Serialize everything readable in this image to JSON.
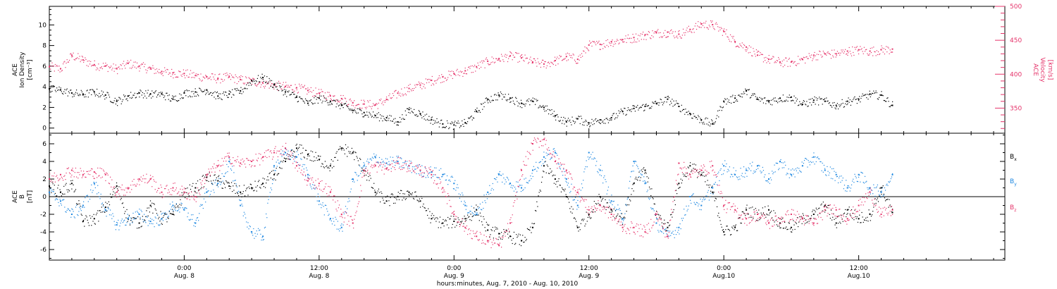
{
  "colors": {
    "black": "#000000",
    "pink": "#e5336a",
    "blue": "#1b86e0"
  },
  "xaxis": {
    "ticks": [
      {
        "time": "0:00",
        "date": "Aug. 8",
        "h": 24
      },
      {
        "time": "12:00",
        "date": "Aug. 8",
        "h": 36
      },
      {
        "time": "0:00",
        "date": "Aug. 9",
        "h": 48
      },
      {
        "time": "12:00",
        "date": "Aug. 9",
        "h": 60
      },
      {
        "time": "0:00",
        "date": "Aug.10",
        "h": 72
      },
      {
        "time": "12:00",
        "date": "Aug.10",
        "h": 84
      }
    ],
    "label": "hours:minutes, Aug.  7, 2010 - Aug. 10, 2010",
    "range_hours": [
      12,
      97
    ],
    "minor_tick_hours": 2
  },
  "chart_data": [
    {
      "type": "scatter",
      "panel": "top",
      "ylabel_left": [
        "ACE",
        "Ion Density",
        "[cm⁻³]"
      ],
      "ylabel_right": [
        "ACE",
        "Velocity",
        "[km/s]"
      ],
      "ylim_left": [
        -0.5,
        11.8
      ],
      "yticks_left": [
        0,
        2,
        4,
        6,
        8,
        10
      ],
      "ylim_right": [
        313,
        500
      ],
      "yticks_right": [
        350,
        400,
        450,
        500
      ],
      "series": [
        {
          "axis": "left",
          "color": "black",
          "x_hours": [
            12,
            13,
            14,
            15,
            16,
            17,
            18,
            19,
            20,
            21,
            22,
            23,
            24,
            25,
            26,
            27,
            28,
            29,
            30,
            31,
            32,
            33,
            34,
            35,
            36,
            37,
            38,
            39,
            40,
            41,
            42,
            43,
            44,
            45,
            46,
            47,
            48,
            49,
            50,
            51,
            52,
            53,
            54,
            55,
            56,
            57,
            58,
            59,
            60,
            61,
            62,
            63,
            64,
            65,
            66,
            67,
            68,
            69,
            70,
            71,
            72,
            73,
            74,
            75,
            76,
            77,
            78,
            79,
            80,
            81,
            82,
            83,
            84,
            85,
            86,
            87
          ],
          "values": [
            3.8,
            3.7,
            3.4,
            3.3,
            3.5,
            3.2,
            2.6,
            3.1,
            3.4,
            3.3,
            3.3,
            2.8,
            3.4,
            3.5,
            3.7,
            3.1,
            3.3,
            3.6,
            4.6,
            4.9,
            4.2,
            3.5,
            3.0,
            2.4,
            2.9,
            2.6,
            2.2,
            1.7,
            1.5,
            1.2,
            1.0,
            0.6,
            1.8,
            1.4,
            0.8,
            0.4,
            0.3,
            0.5,
            1.6,
            2.8,
            3.2,
            2.9,
            2.4,
            2.6,
            2.0,
            1.2,
            0.6,
            0.9,
            0.5,
            0.8,
            1.0,
            1.6,
            1.9,
            2.1,
            2.4,
            2.8,
            2.1,
            1.4,
            0.8,
            0.4,
            2.6,
            2.9,
            3.6,
            2.8,
            2.6,
            2.9,
            3.0,
            2.3,
            2.7,
            2.6,
            2.2,
            2.6,
            2.8,
            3.3,
            3.2,
            2.2
          ]
        },
        {
          "axis": "right",
          "color": "pink",
          "x_hours": [
            12,
            13,
            14,
            15,
            16,
            17,
            18,
            19,
            20,
            21,
            22,
            23,
            24,
            25,
            26,
            27,
            28,
            29,
            30,
            31,
            32,
            33,
            34,
            35,
            36,
            37,
            38,
            39,
            40,
            41,
            42,
            43,
            44,
            45,
            46,
            47,
            48,
            49,
            50,
            51,
            52,
            53,
            54,
            55,
            56,
            57,
            58,
            59,
            60,
            61,
            62,
            63,
            64,
            65,
            66,
            67,
            68,
            69,
            70,
            71,
            72,
            73,
            74,
            75,
            76,
            77,
            78,
            79,
            80,
            81,
            82,
            83,
            84,
            85,
            86,
            87
          ],
          "values": [
            411,
            408,
            428,
            421,
            414,
            412,
            408,
            416,
            412,
            408,
            404,
            402,
            401,
            398,
            396,
            394,
            396,
            392,
            390,
            387,
            384,
            382,
            380,
            376,
            372,
            368,
            364,
            358,
            356,
            355,
            363,
            372,
            379,
            384,
            391,
            396,
            401,
            405,
            411,
            419,
            423,
            427,
            424,
            418,
            415,
            420,
            426,
            422,
            443,
            444,
            448,
            451,
            454,
            458,
            461,
            462,
            459,
            466,
            474,
            473,
            463,
            448,
            440,
            428,
            422,
            418,
            418,
            422,
            428,
            430,
            430,
            434,
            436,
            434,
            436,
            437
          ]
        }
      ]
    },
    {
      "type": "scatter",
      "panel": "bottom",
      "ylabel_left": [
        "ACE",
        "B",
        "[nT]"
      ],
      "ylim": [
        -7.2,
        7.2
      ],
      "yticks": [
        -6,
        -4,
        -2,
        0,
        2,
        4,
        6
      ],
      "legend": [
        "Bₓ",
        "Bᵧ",
        "B_z"
      ],
      "legend_placement": "right",
      "series": [
        {
          "name": "Bx",
          "legend_label": "B",
          "legend_sub": "x",
          "color": "black",
          "x_hours": [
            12,
            13,
            14,
            15,
            16,
            17,
            18,
            19,
            20,
            21,
            22,
            23,
            24,
            25,
            26,
            27,
            28,
            29,
            30,
            31,
            32,
            33,
            34,
            35,
            36,
            37,
            38,
            39,
            40,
            41,
            42,
            43,
            44,
            45,
            46,
            47,
            48,
            49,
            50,
            51,
            52,
            53,
            54,
            55,
            56,
            57,
            58,
            59,
            60,
            61,
            62,
            63,
            64,
            65,
            66,
            67,
            68,
            69,
            70,
            71,
            72,
            73,
            74,
            75,
            76,
            77,
            78,
            79,
            80,
            81,
            82,
            83,
            84,
            85,
            86,
            87
          ],
          "values": [
            1.2,
            0.5,
            1.5,
            -2.8,
            -2.5,
            -1.2,
            1.2,
            -2.5,
            -3.0,
            -1.0,
            -2.5,
            -2.0,
            0.5,
            1.0,
            2.2,
            1.8,
            1.2,
            0.5,
            1.0,
            1.5,
            2.5,
            4.0,
            5.5,
            4.8,
            4.2,
            3.5,
            5.5,
            5.0,
            3.0,
            0.5,
            -0.5,
            0.0,
            0.5,
            -0.5,
            -2.5,
            -3.0,
            -2.8,
            -2.5,
            -1.5,
            -3.8,
            -4.2,
            -4.5,
            -5.0,
            -3.5,
            3.5,
            2.0,
            0.0,
            -3.5,
            -2.0,
            0.0,
            -1.5,
            -2.5,
            1.5,
            3.0,
            -2.0,
            -3.5,
            1.5,
            3.5,
            2.5,
            0.5,
            -4.0,
            -3.5,
            -1.5,
            -2.0,
            -1.5,
            -3.0,
            -3.5,
            -2.5,
            -2.0,
            -1.0,
            -3.0,
            -1.5,
            -2.5,
            -2.0,
            1.0,
            -1.8
          ]
        },
        {
          "name": "By",
          "legend_label": "B",
          "legend_sub": "y",
          "color": "blue",
          "x_hours": [
            12,
            13,
            14,
            15,
            16,
            17,
            18,
            19,
            20,
            21,
            22,
            23,
            24,
            25,
            26,
            27,
            28,
            29,
            30,
            31,
            32,
            33,
            34,
            35,
            36,
            37,
            38,
            39,
            40,
            41,
            42,
            43,
            44,
            45,
            46,
            47,
            48,
            49,
            50,
            51,
            52,
            53,
            54,
            55,
            56,
            57,
            58,
            59,
            60,
            61,
            62,
            63,
            64,
            65,
            66,
            67,
            68,
            69,
            70,
            71,
            72,
            73,
            74,
            75,
            76,
            77,
            78,
            79,
            80,
            81,
            82,
            83,
            84,
            85,
            86,
            87
          ],
          "values": [
            0.5,
            -0.5,
            -2.0,
            -1.0,
            1.5,
            -1.5,
            -3.2,
            -2.5,
            -2.0,
            -2.8,
            -2.5,
            -1.0,
            -1.5,
            -3.0,
            0.5,
            1.5,
            4.0,
            -1.0,
            -4.0,
            -4.5,
            3.5,
            5.0,
            4.5,
            2.5,
            -0.5,
            -2.5,
            -3.5,
            2.0,
            3.5,
            4.5,
            3.8,
            4.0,
            3.5,
            3.0,
            2.8,
            2.5,
            1.5,
            -1.0,
            -2.0,
            0.5,
            2.5,
            1.5,
            1.0,
            3.0,
            4.5,
            5.0,
            2.0,
            -1.0,
            5.0,
            3.0,
            -0.5,
            -2.5,
            4.0,
            1.5,
            -3.0,
            -4.5,
            -3.5,
            0.0,
            -1.0,
            1.0,
            3.5,
            2.5,
            3.0,
            3.5,
            2.0,
            4.0,
            2.5,
            3.5,
            4.5,
            3.0,
            2.5,
            1.0,
            2.5,
            1.0,
            0.5,
            2.5
          ]
        },
        {
          "name": "Bz",
          "legend_label": "B",
          "legend_sub": "z",
          "color": "pink",
          "x_hours": [
            12,
            13,
            14,
            15,
            16,
            17,
            18,
            19,
            20,
            21,
            22,
            23,
            24,
            25,
            26,
            27,
            28,
            29,
            30,
            31,
            32,
            33,
            34,
            35,
            36,
            37,
            38,
            39,
            40,
            41,
            42,
            43,
            44,
            45,
            46,
            47,
            48,
            49,
            50,
            51,
            52,
            53,
            54,
            55,
            56,
            57,
            58,
            59,
            60,
            61,
            62,
            63,
            64,
            65,
            66,
            67,
            68,
            69,
            70,
            71,
            72,
            73,
            74,
            75,
            76,
            77,
            78,
            79,
            80,
            81,
            82,
            83,
            84,
            85,
            86,
            87
          ],
          "values": [
            2.0,
            2.5,
            3.0,
            2.5,
            2.8,
            2.5,
            0.5,
            1.0,
            2.0,
            2.0,
            0.5,
            1.0,
            0.5,
            0.0,
            2.5,
            3.5,
            4.5,
            3.8,
            4.0,
            4.5,
            5.0,
            5.5,
            3.5,
            1.8,
            1.5,
            0.5,
            -2.0,
            -3.0,
            3.0,
            3.5,
            3.2,
            3.8,
            3.5,
            3.0,
            2.5,
            1.0,
            -2.0,
            -3.5,
            -4.5,
            -5.0,
            -5.5,
            -3.0,
            3.0,
            6.0,
            6.5,
            4.0,
            3.0,
            0.5,
            -1.5,
            -1.0,
            -2.0,
            -3.5,
            -3.5,
            -4.0,
            -2.0,
            -4.5,
            3.8,
            2.5,
            3.0,
            3.5,
            -1.0,
            -1.5,
            -2.5,
            -2.0,
            -3.0,
            -2.5,
            -2.0,
            -2.5,
            -3.0,
            -1.5,
            -1.5,
            -2.5,
            -1.0,
            0.5,
            -2.0,
            -1.5
          ]
        }
      ]
    }
  ]
}
